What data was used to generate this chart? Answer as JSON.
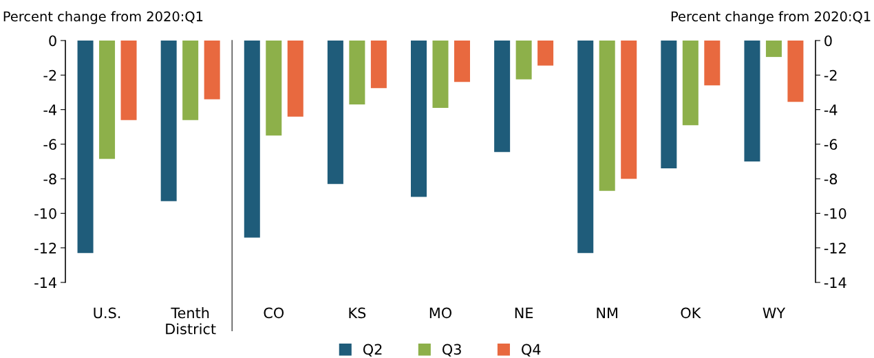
{
  "chart_data": {
    "type": "bar",
    "ylabel": "Percent change from 2020:Q1",
    "y2label": "Percent change from 2020:Q1",
    "categories": [
      "U.S.",
      "Tenth\nDistrict",
      "CO",
      "KS",
      "MO",
      "NE",
      "NM",
      "OK",
      "WY"
    ],
    "series": [
      {
        "name": "Q2",
        "color": "#1f5c7a",
        "values": [
          -12.3,
          -9.3,
          -11.4,
          -8.3,
          -9.05,
          -6.45,
          -12.3,
          -7.4,
          -7.0
        ]
      },
      {
        "name": "Q3",
        "color": "#8db04a",
        "values": [
          -6.85,
          -4.6,
          -5.5,
          -3.7,
          -3.9,
          -2.25,
          -8.7,
          -4.9,
          -0.95
        ]
      },
      {
        "name": "Q4",
        "color": "#e8693f",
        "values": [
          -4.6,
          -3.4,
          -4.4,
          -2.75,
          -2.4,
          -1.45,
          -8.0,
          -2.6,
          -3.55
        ]
      }
    ],
    "ylim": [
      -14,
      0
    ],
    "yticks": [
      -14,
      -12,
      -10,
      -8,
      -6,
      -4,
      -2,
      0
    ],
    "y2lim": [
      -14,
      0
    ],
    "y2ticks": [
      -14,
      -12,
      -10,
      -8,
      -6,
      -4,
      -2,
      0
    ],
    "grid": false,
    "legend": "bottom"
  }
}
